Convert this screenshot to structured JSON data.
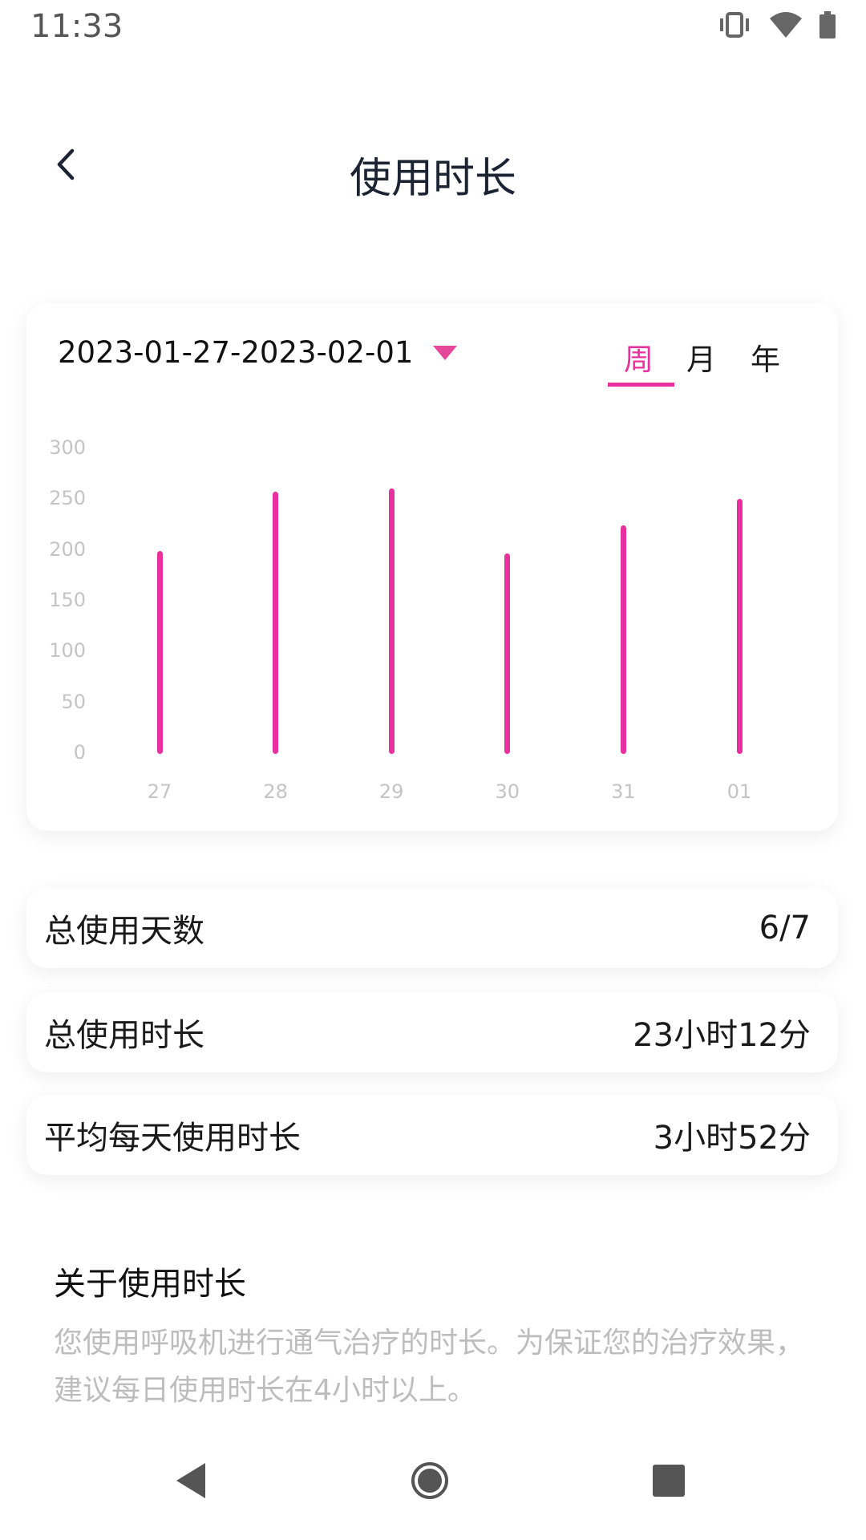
{
  "status_bar": {
    "time": "11:33",
    "icons": [
      "vibrate-icon",
      "wifi-icon",
      "battery-icon"
    ]
  },
  "header": {
    "title": "使用时长",
    "back_icon": "chevron-left-icon"
  },
  "chart_card": {
    "date_range": "2023-01-27-2023-02-01",
    "tabs": [
      {
        "label": "周",
        "active": true
      },
      {
        "label": "月",
        "active": false
      },
      {
        "label": "年",
        "active": false
      }
    ],
    "accent": "#e8309e"
  },
  "chart_data": {
    "type": "bar",
    "categories": [
      "27",
      "28",
      "29",
      "30",
      "31",
      "01"
    ],
    "values": [
      200,
      258,
      261,
      197,
      225,
      251
    ],
    "yticks": [
      "0",
      "50",
      "100",
      "150",
      "200",
      "250",
      "300"
    ],
    "ylim": [
      0,
      300
    ],
    "grid": false,
    "color": "#e8309e"
  },
  "stats": [
    {
      "label": "总使用天数",
      "value": "6/7"
    },
    {
      "label": "总使用时长",
      "value": "23小时12分"
    },
    {
      "label": "平均每天使用时长",
      "value": "3小时52分"
    }
  ],
  "about": {
    "title": "关于使用时长",
    "description": "您使用呼吸机进行通气治疗的时长。为保证您的治疗效果，建议每日使用时长在4小时以上。"
  },
  "nav_bar": {
    "icons": [
      "back-triangle-icon",
      "home-circle-icon",
      "recents-square-icon"
    ]
  }
}
